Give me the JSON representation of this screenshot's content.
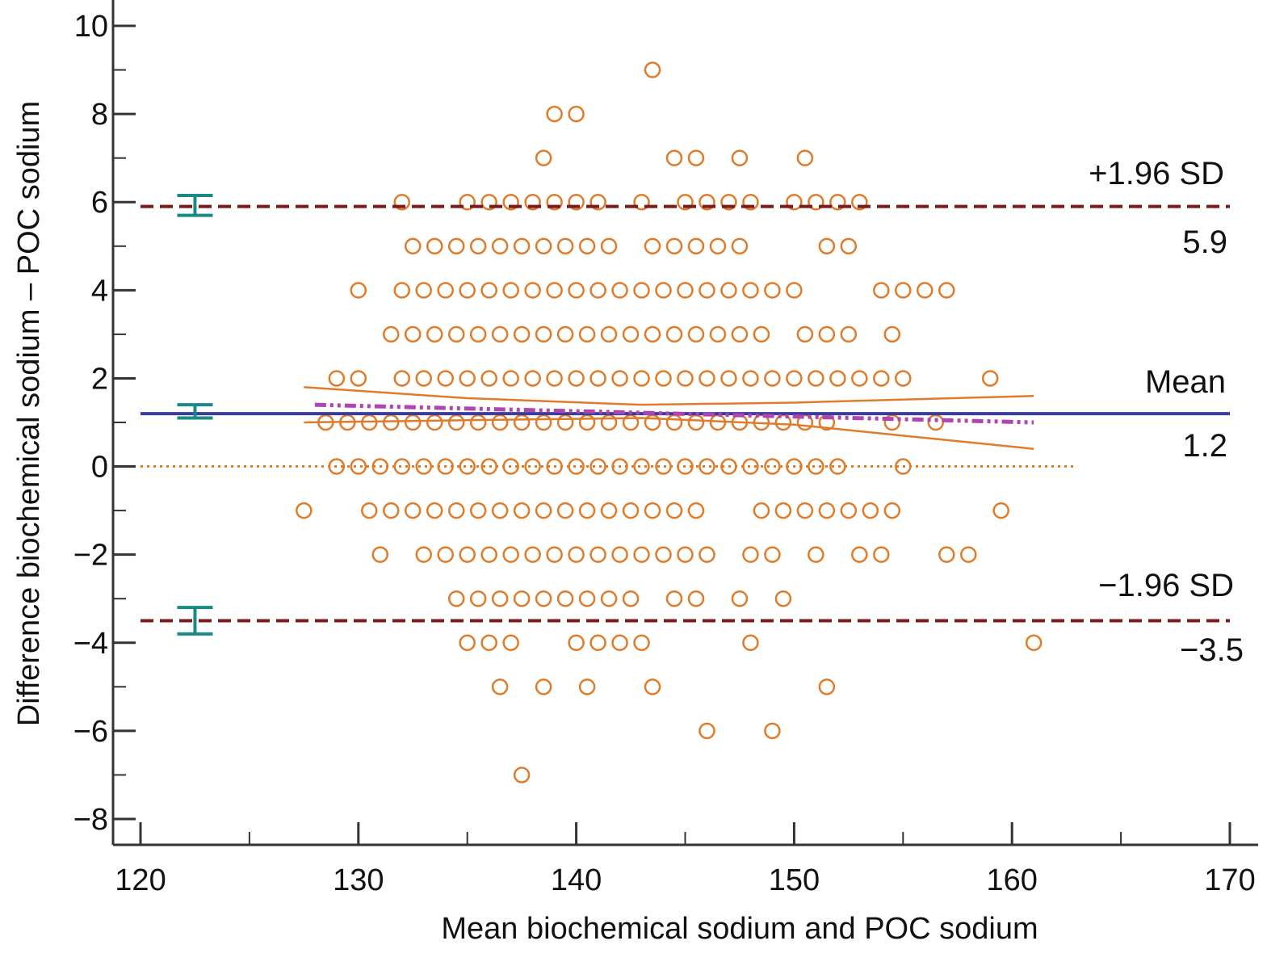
{
  "chart_data": {
    "type": "scatter",
    "title": "",
    "xlabel": "Mean biochemical sodium and POC sodium",
    "ylabel": "Difference biochemical sodium – POC sodium",
    "xlim": [
      120,
      170
    ],
    "ylim": [
      -8,
      10
    ],
    "xticks": [
      120,
      130,
      140,
      150,
      160,
      170
    ],
    "xtick_labels": [
      "120",
      "130",
      "140",
      "150",
      "160",
      "170"
    ],
    "yticks": [
      -8,
      -6,
      -4,
      -2,
      0,
      2,
      4,
      6,
      8,
      10
    ],
    "ytick_labels": [
      "−8",
      "−6",
      "−4",
      "−2",
      "0",
      "2",
      "4",
      "6",
      "8",
      "10"
    ],
    "grid": false,
    "colors": {
      "points": "#e07b2a",
      "mean": "#3b3b9a",
      "limits": "#7a1a1a",
      "zero": "#e07b2a",
      "regression": "#b044b0",
      "ci": "#e07b2a",
      "errorbars": "#1a8a84"
    },
    "point_rows": [
      {
        "y": 9,
        "x": [
          143.5
        ]
      },
      {
        "y": 8,
        "x": [
          139,
          140
        ]
      },
      {
        "y": 7,
        "x": [
          138.5,
          144.5,
          145.5,
          147.5,
          150.5
        ]
      },
      {
        "y": 6,
        "x": [
          132,
          135,
          136,
          137,
          138,
          139,
          140,
          141,
          143,
          145,
          146,
          147,
          148,
          150,
          151,
          152,
          153
        ]
      },
      {
        "y": 5,
        "x": [
          132.5,
          133.5,
          134.5,
          135.5,
          136.5,
          137.5,
          138.5,
          139.5,
          140.5,
          141.5,
          143.5,
          144.5,
          145.5,
          146.5,
          147.5,
          151.5,
          152.5
        ]
      },
      {
        "y": 4,
        "x": [
          130,
          132,
          133,
          134,
          135,
          136,
          137,
          138,
          139,
          140,
          141,
          142,
          143,
          144,
          145,
          146,
          147,
          148,
          149,
          150,
          154,
          155,
          156,
          157
        ]
      },
      {
        "y": 3,
        "x": [
          131.5,
          132.5,
          133.5,
          134.5,
          135.5,
          136.5,
          137.5,
          138.5,
          139.5,
          140.5,
          141.5,
          142.5,
          143.5,
          144.5,
          145.5,
          146.5,
          147.5,
          148.5,
          150.5,
          151.5,
          152.5,
          154.5
        ]
      },
      {
        "y": 2,
        "x": [
          129,
          130,
          132,
          133,
          134,
          135,
          136,
          137,
          138,
          139,
          140,
          141,
          142,
          143,
          144,
          145,
          146,
          147,
          148,
          149,
          150,
          151,
          152,
          153,
          154,
          155,
          159
        ]
      },
      {
        "y": 1,
        "x": [
          128.5,
          129.5,
          130.5,
          131.5,
          132.5,
          133.5,
          134.5,
          135.5,
          136.5,
          137.5,
          138.5,
          139.5,
          140.5,
          141.5,
          142.5,
          143.5,
          144.5,
          145.5,
          146.5,
          147.5,
          148.5,
          149.5,
          150.5,
          151.5,
          154.5,
          156.5
        ]
      },
      {
        "y": 0,
        "x": [
          129,
          130,
          131,
          132,
          133,
          134,
          135,
          136,
          137,
          138,
          139,
          140,
          141,
          142,
          143,
          144,
          145,
          146,
          147,
          148,
          149,
          150,
          151,
          152,
          155
        ]
      },
      {
        "y": -1,
        "x": [
          127.5,
          130.5,
          131.5,
          132.5,
          133.5,
          134.5,
          135.5,
          136.5,
          137.5,
          138.5,
          139.5,
          140.5,
          141.5,
          142.5,
          143.5,
          144.5,
          145.5,
          148.5,
          149.5,
          150.5,
          151.5,
          152.5,
          153.5,
          154.5,
          159.5
        ]
      },
      {
        "y": -2,
        "x": [
          131,
          133,
          134,
          135,
          136,
          137,
          138,
          139,
          140,
          141,
          142,
          143,
          144,
          145,
          146,
          148,
          149,
          151,
          153,
          154,
          157,
          158
        ]
      },
      {
        "y": -3,
        "x": [
          134.5,
          135.5,
          136.5,
          137.5,
          138.5,
          139.5,
          140.5,
          141.5,
          142.5,
          144.5,
          145.5,
          147.5,
          149.5
        ]
      },
      {
        "y": -4,
        "x": [
          135,
          136,
          137,
          140,
          141,
          142,
          143,
          148,
          161
        ]
      },
      {
        "y": -5,
        "x": [
          136.5,
          138.5,
          140.5,
          143.5,
          151.5
        ]
      },
      {
        "y": -6,
        "x": [
          146,
          149
        ]
      },
      {
        "y": -7,
        "x": [
          137.5
        ]
      }
    ],
    "mean": {
      "value": 1.2,
      "label": "Mean",
      "value_label": "1.2"
    },
    "upper_loa": {
      "value": 5.9,
      "label": "+1.96 SD",
      "value_label": "5.9"
    },
    "lower_loa": {
      "value": -3.5,
      "label": "−1.96 SD",
      "value_label": "−3.5"
    },
    "zero_line": {
      "value": 0,
      "x_range": [
        120,
        163
      ]
    },
    "regression_line": {
      "x": [
        128,
        161
      ],
      "y": [
        1.4,
        1.0
      ]
    },
    "ci_upper": {
      "x": [
        127.5,
        135,
        143,
        150,
        161
      ],
      "y": [
        1.8,
        1.55,
        1.4,
        1.45,
        1.6
      ]
    },
    "ci_lower": {
      "x": [
        127.5,
        135,
        143,
        150,
        161
      ],
      "y": [
        1.0,
        1.05,
        1.1,
        0.95,
        0.4
      ]
    },
    "error_bars": [
      {
        "x": 122.5,
        "low": 5.7,
        "high": 6.15
      },
      {
        "x": 122.5,
        "low": 1.1,
        "high": 1.4
      },
      {
        "x": 122.5,
        "low": -3.8,
        "high": -3.2
      }
    ]
  }
}
